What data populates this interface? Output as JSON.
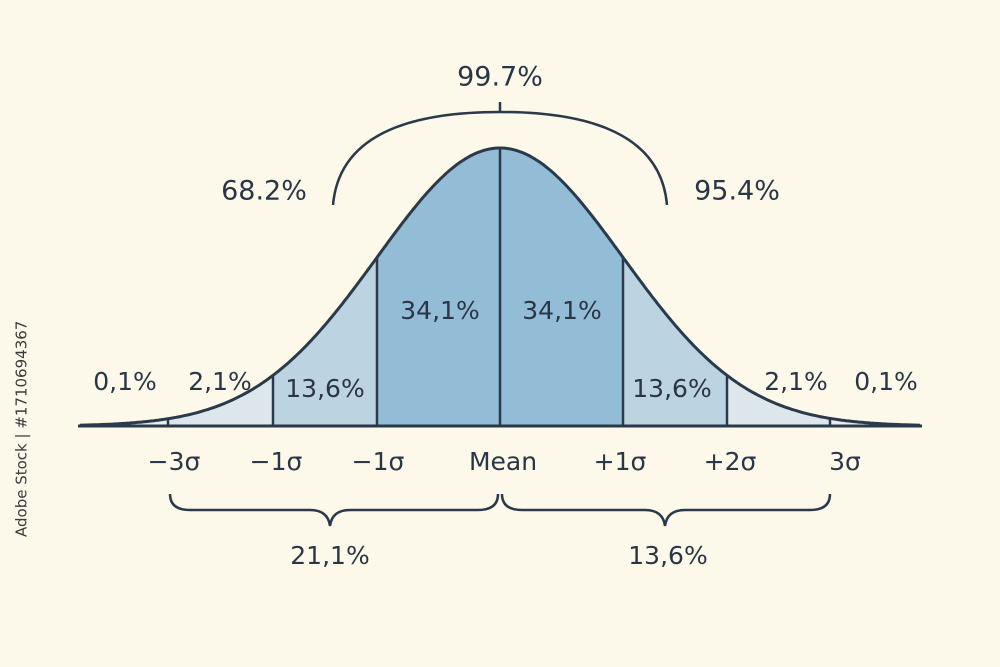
{
  "top": {
    "total": "99.7%",
    "left": "68.2%",
    "right": "95.4%"
  },
  "regions": [
    "0,1%",
    "2,1%",
    "13,6%",
    "34,1%",
    "34,1%",
    "13,6%",
    "2,1%",
    "0,1%"
  ],
  "axis_labels": [
    "−3σ",
    "−1σ",
    "−1σ",
    "Mean",
    "+1σ",
    "+2σ",
    "3σ"
  ],
  "brace_labels": [
    "21,1%",
    "13,6%"
  ],
  "watermark": "Adobe Stock | #1710694367"
}
